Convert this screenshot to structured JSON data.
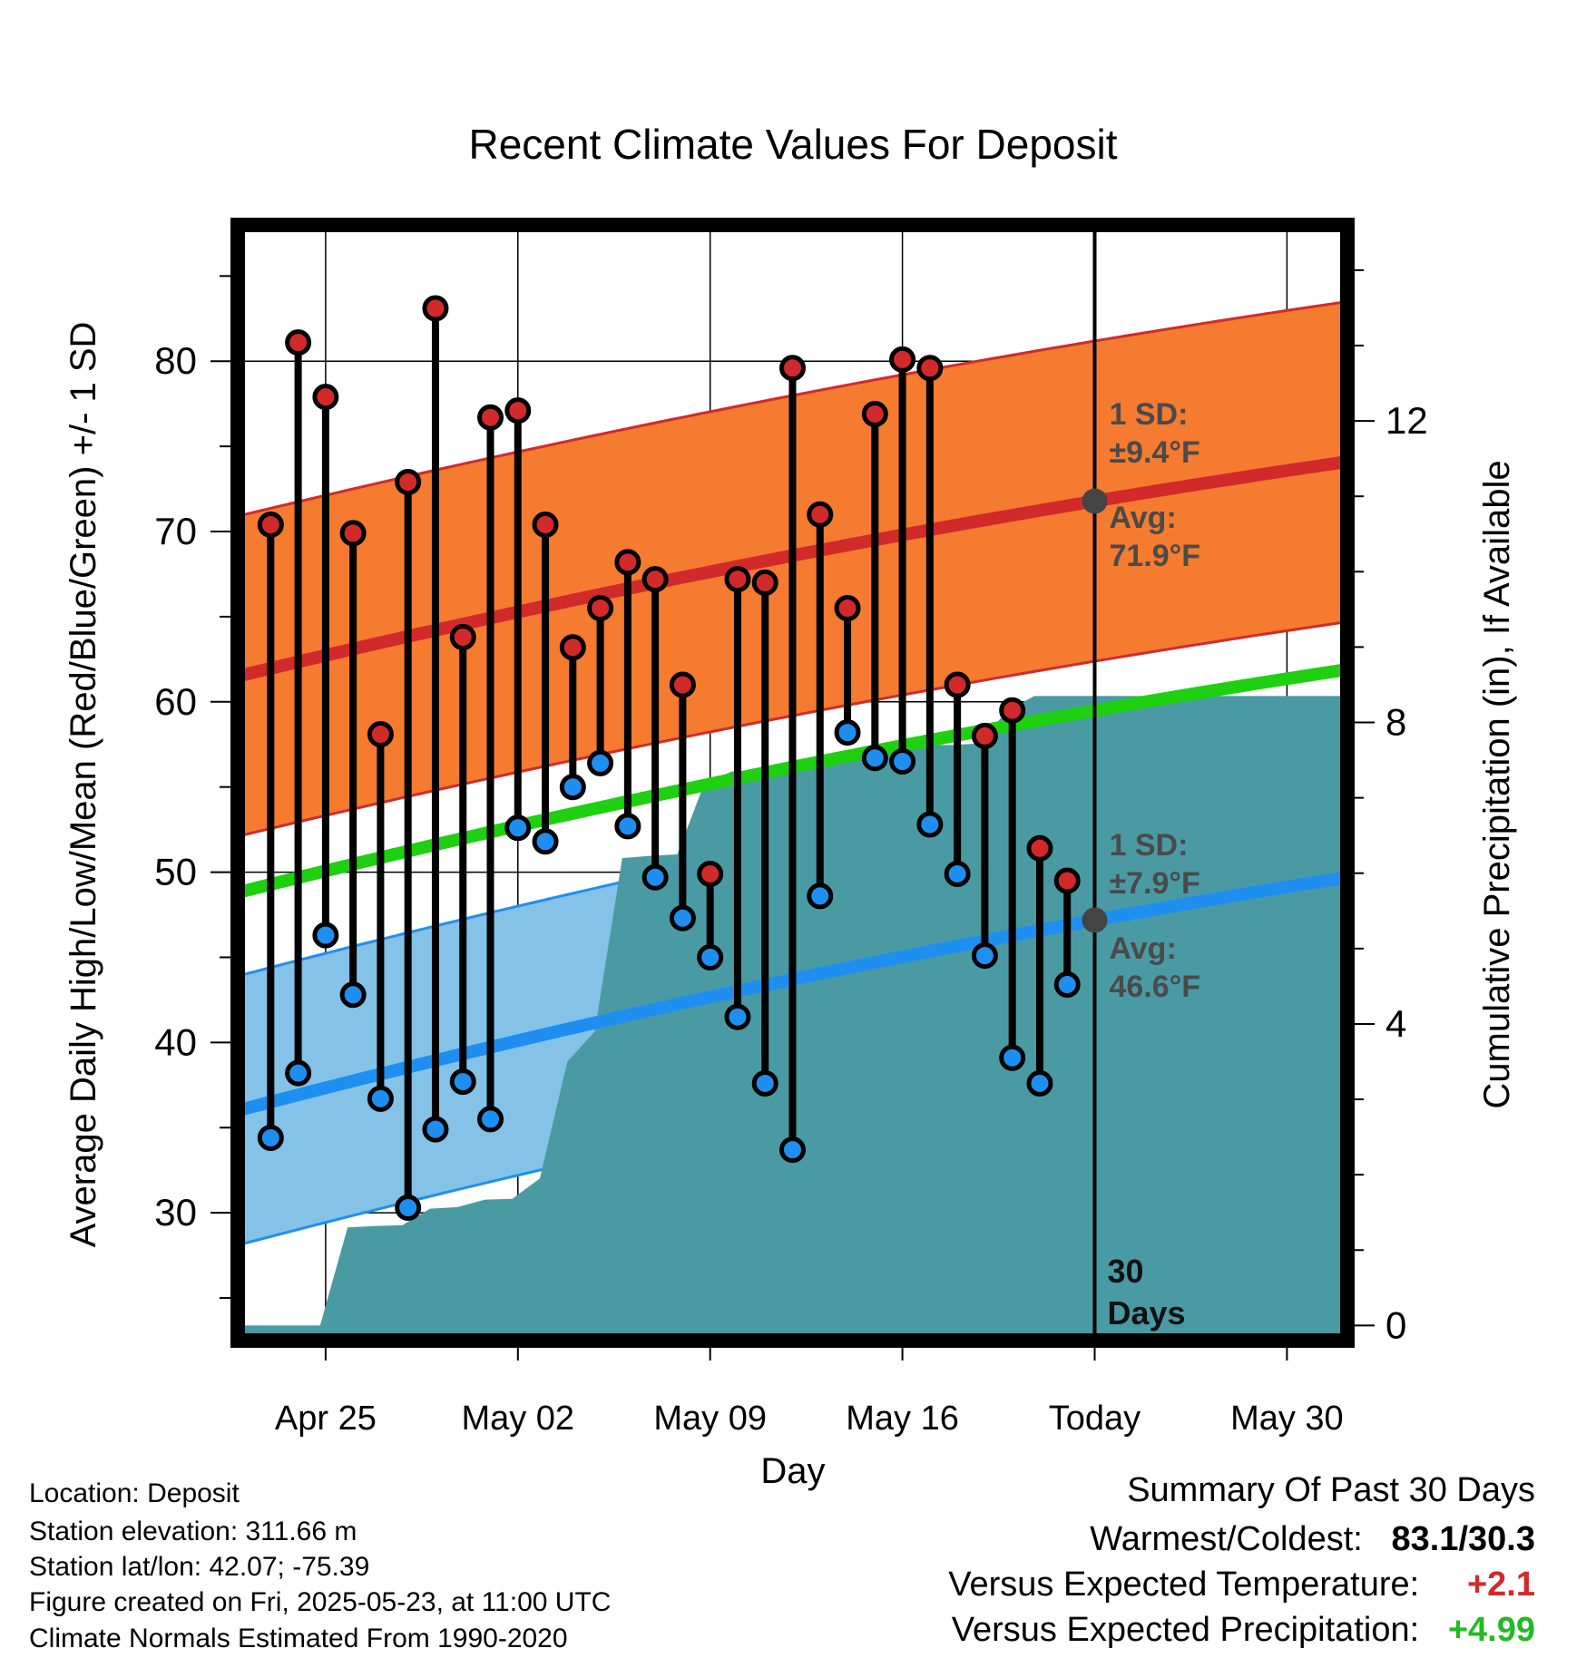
{
  "chart_data": {
    "type": "range-dots",
    "title": "Recent Climate Values For Deposit",
    "xlabel": "Day",
    "ylabel_left": "Average Daily High/Low/Mean (Red/Blue/Green) +/- 1 SD",
    "ylabel_right": "Cumulative Precipitation (in), If Available",
    "x_tick_labels": [
      "Apr 25",
      "May 02",
      "May 09",
      "May 16",
      "Today",
      "May 30"
    ],
    "x_tick_days": [
      0,
      7,
      14,
      21,
      28,
      35
    ],
    "x_range": [
      -3.2,
      37.2
    ],
    "y_left_ticks": [
      30,
      40,
      50,
      60,
      70,
      80
    ],
    "y_left_range": [
      22.5,
      88
    ],
    "y_right_ticks": [
      0,
      4,
      8,
      12
    ],
    "y_right_range": [
      -0.2,
      14.6
    ],
    "today_day": 28,
    "today_label": "30 Days",
    "daily": {
      "day": [
        -2,
        -1,
        0,
        1,
        2,
        3,
        4,
        5,
        6,
        7,
        8,
        9,
        10,
        11,
        12,
        13,
        14,
        15,
        16,
        17,
        18,
        19,
        20,
        21,
        22,
        23,
        24,
        25,
        26,
        27
      ],
      "high": [
        70.4,
        81.1,
        77.9,
        69.9,
        58.1,
        72.9,
        83.1,
        63.8,
        76.7,
        77.1,
        70.4,
        63.2,
        65.5,
        68.2,
        67.2,
        61.0,
        49.9,
        67.2,
        67.0,
        79.6,
        71.0,
        65.5,
        76.9,
        80.1,
        79.6,
        61.0,
        58.0,
        59.5,
        51.4,
        49.5
      ],
      "low": [
        34.4,
        38.2,
        46.3,
        42.8,
        36.7,
        30.3,
        34.9,
        37.7,
        35.5,
        52.6,
        51.8,
        55.0,
        56.4,
        52.7,
        49.7,
        47.3,
        45.0,
        41.5,
        37.6,
        33.7,
        48.6,
        58.2,
        56.7,
        56.5,
        52.8,
        49.9,
        45.1,
        39.1,
        37.6,
        43.4
      ]
    },
    "normal_high": {
      "start": 61.5,
      "end": 74.1,
      "sd": 9.4
    },
    "normal_low": {
      "start": 36.0,
      "end": 49.7,
      "sd": 7.9
    },
    "normal_mean": {
      "start": 48.8,
      "end": 61.9
    },
    "precip_cumulative": {
      "day": [
        -3.2,
        -0.2,
        0.8,
        1.8,
        2.8,
        3.8,
        4.8,
        5.8,
        6.8,
        7.8,
        8.8,
        9.8,
        10.8,
        11.8,
        12.8,
        13.8,
        14.8,
        15.8,
        16.8,
        17.8,
        18.8,
        19.8,
        20.8,
        21.8,
        22.8,
        23.8,
        24.8,
        25.8,
        26.8,
        37.2
      ],
      "value": [
        0,
        0,
        1.3,
        1.32,
        1.33,
        1.55,
        1.57,
        1.67,
        1.68,
        1.95,
        3.5,
        3.9,
        6.2,
        6.23,
        6.25,
        7.2,
        7.35,
        7.36,
        7.38,
        7.4,
        7.6,
        7.6,
        7.65,
        7.7,
        7.7,
        7.72,
        8.15,
        8.35,
        8.35,
        8.35
      ]
    },
    "annotations": {
      "high_sd": [
        "1 SD:",
        "±9.4°F"
      ],
      "high_avg": [
        "Avg:",
        "71.9°F"
      ],
      "low_sd": [
        "1 SD:",
        "±7.9°F"
      ],
      "low_avg": [
        "Avg:",
        "46.6°F"
      ]
    },
    "colors": {
      "high_band": "#f47b30",
      "high_line": "#d22a2a",
      "low_band": "#84c2e8",
      "low_line": "#1e8ff0",
      "mean_line": "#1ed00f",
      "precip": "#4a9aa3",
      "high_dot": "#d22a2a",
      "low_dot": "#1e8ff0"
    }
  },
  "meta": {
    "location": "Location: Deposit",
    "elevation": "Station elevation: 311.66 m",
    "latlon": "Station lat/lon: 42.07; -75.39",
    "created": "Figure created on Fri, 2025-05-23, at 11:00 UTC",
    "normals": "Climate Normals Estimated From 1990-2020"
  },
  "summary": {
    "heading": "Summary Of Past 30 Days",
    "warmest_label": "Warmest/Coldest:",
    "warmest_value": "83.1/30.3",
    "temp_label": "Versus Expected Temperature:",
    "temp_value": "+2.1",
    "precip_label": "Versus Expected Precipitation:",
    "precip_value": "+4.99"
  }
}
